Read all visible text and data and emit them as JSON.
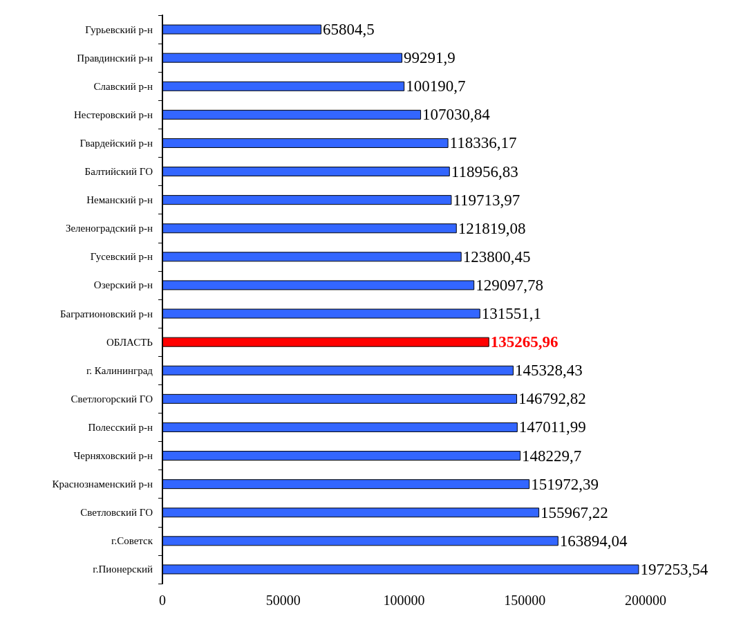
{
  "chart_data": {
    "type": "bar",
    "orientation": "horizontal",
    "categories": [
      "Гурьевский р-н",
      "Правдинский р-н",
      "Славский р-н",
      "Нестеровский р-н",
      "Гвардейский р-н",
      "Балтийский ГО",
      "Неманский р-н",
      "Зеленоградский р-н",
      "Гусевский р-н",
      "Озерский р-н",
      "Багратионовский р-н",
      "ОБЛАСТЬ",
      "г. Калининград",
      "Светлогорский ГО",
      "Полесский р-н",
      "Черняховский р-н",
      "Краснознаменский р-н",
      "Светловский ГО",
      "г.Советск",
      "г.Пионерский"
    ],
    "values": [
      65804.5,
      99291.9,
      100190.7,
      107030.84,
      118336.17,
      118956.83,
      119713.97,
      121819.08,
      123800.45,
      129097.78,
      131551.1,
      135265.96,
      145328.43,
      146792.82,
      147011.99,
      148229.7,
      151972.39,
      155967.22,
      163894.04,
      197253.54
    ],
    "value_labels": [
      "65804,5",
      "99291,9",
      "100190,7",
      "107030,84",
      "118336,17",
      "118956,83",
      "119713,97",
      "121819,08",
      "123800,45",
      "129097,78",
      "131551,1",
      "135265,96",
      "145328,43",
      "146792,82",
      "147011,99",
      "148229,7",
      "151972,39",
      "155967,22",
      "163894,04",
      "197253,54"
    ],
    "colors": [
      "#3366ff",
      "#3366ff",
      "#3366ff",
      "#3366ff",
      "#3366ff",
      "#3366ff",
      "#3366ff",
      "#3366ff",
      "#3366ff",
      "#3366ff",
      "#3366ff",
      "#ff0000",
      "#3366ff",
      "#3366ff",
      "#3366ff",
      "#3366ff",
      "#3366ff",
      "#3366ff",
      "#3366ff",
      "#3366ff"
    ],
    "xlim": [
      0,
      200000
    ],
    "xticks": [
      0,
      50000,
      100000,
      150000,
      200000
    ],
    "grid": false
  }
}
